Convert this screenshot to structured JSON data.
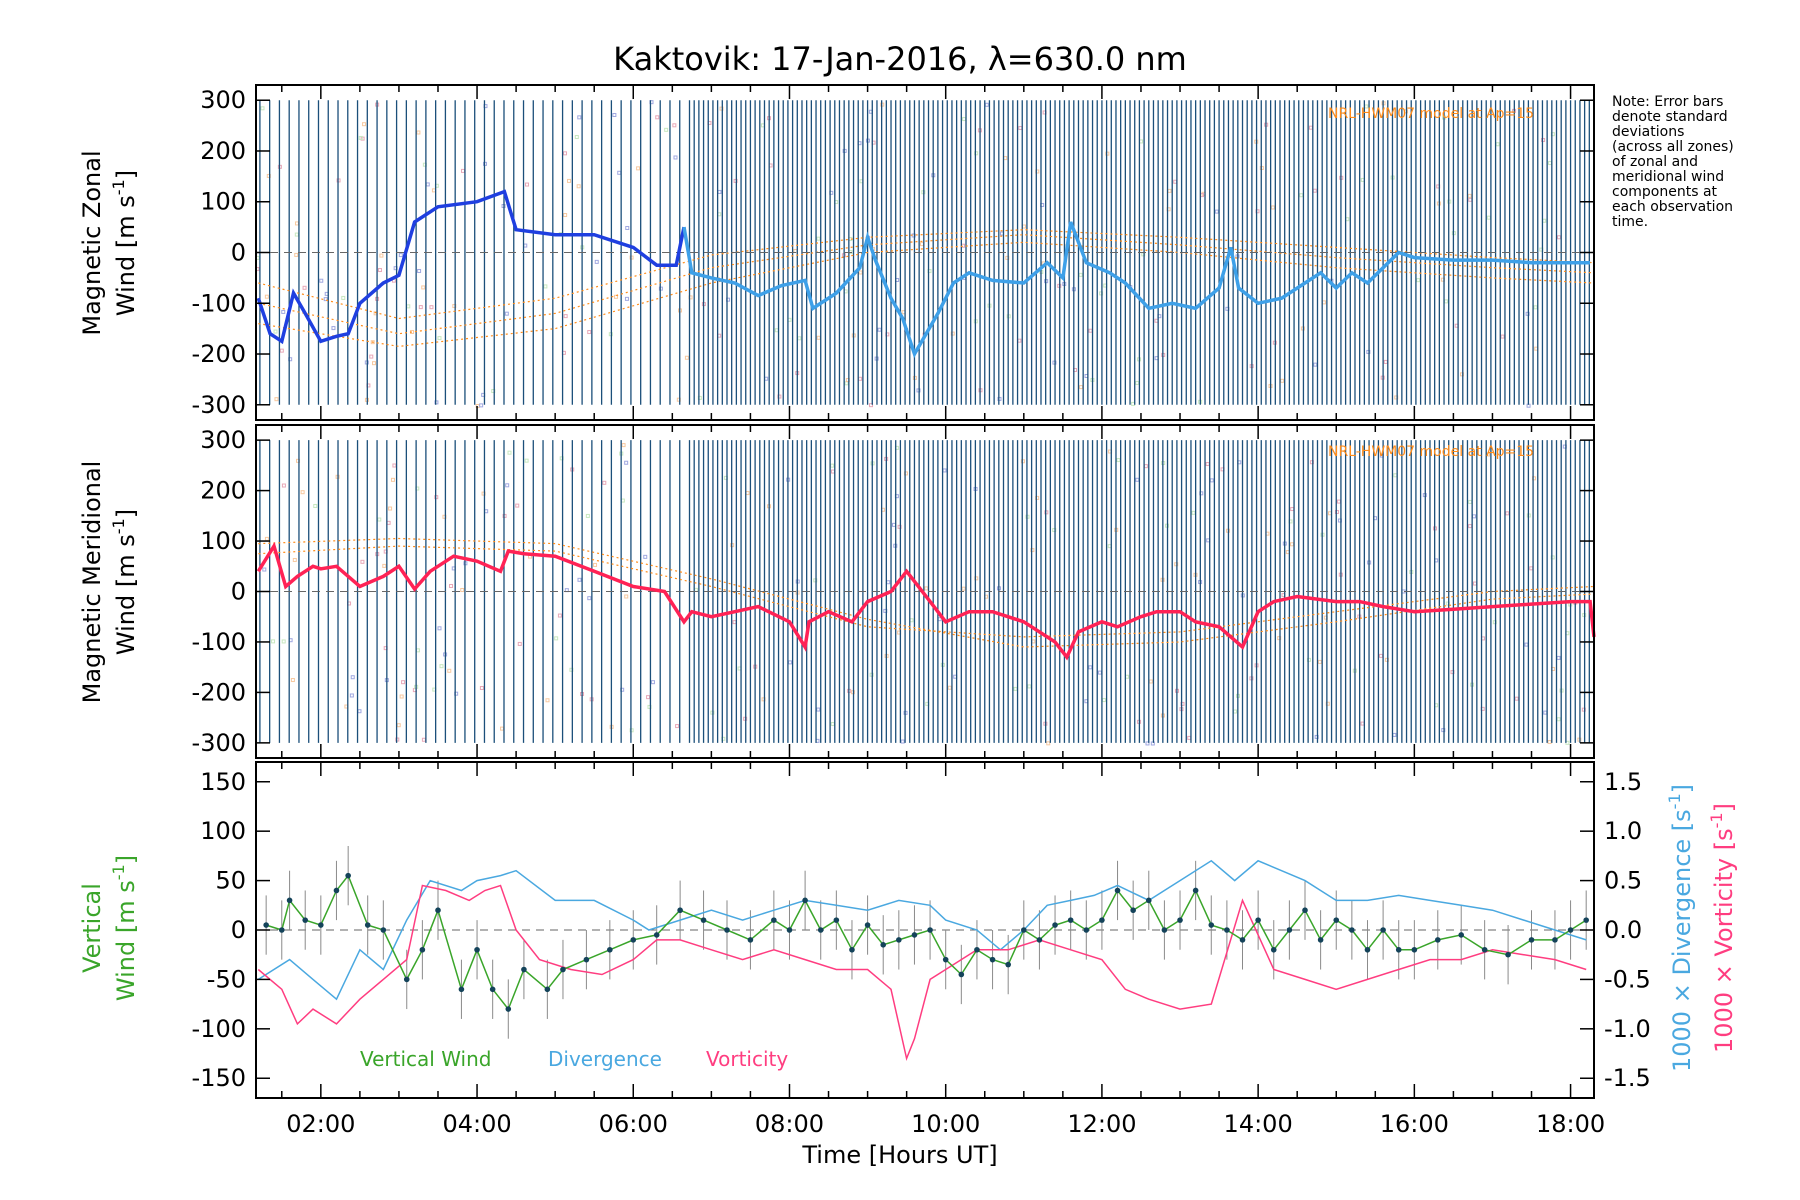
{
  "title": "Kaktovik: 17-Jan-2016, λ=630.0 nm",
  "note": [
    "Note: Error bars",
    "denote standard",
    "deviations",
    "(across all zones)",
    "of zonal and",
    "meridional wind",
    "components at",
    "each observation",
    "time."
  ],
  "model_label": "NRL-HWM07 model at Ap=15",
  "colors": {
    "zonal": "#1f3fe0",
    "zonal_light": "#3ea0e8",
    "meridional": "#ff2255",
    "errorbar": "#1b4f7a",
    "vertical": "#3aa52a",
    "divergence": "#4aa8e0",
    "vorticity": "#ff3d80",
    "model": "#ff8c1a",
    "bg_scatter": "#a0a8e0"
  },
  "chart_data": [
    {
      "type": "line",
      "panel": "zonal",
      "ylabel_line1": "Magnetic Zonal",
      "ylabel_line2": "Wind [m s",
      "ylabel_sup": "-1",
      "ylabel_end": "]",
      "ylim": [
        -330,
        330
      ],
      "yticks": [
        300,
        200,
        100,
        0,
        -100,
        -200,
        -300
      ],
      "xlim": [
        1.17,
        18.3
      ],
      "errorbar_halfwidth": 300,
      "series": [
        {
          "x": [
            1.2,
            1.35,
            1.5,
            1.65,
            1.8,
            2.0,
            2.2,
            2.35,
            2.5,
            2.8,
            3.0,
            3.2,
            3.5,
            4.0,
            4.35,
            4.5,
            5.0,
            5.5,
            6.0,
            6.3,
            6.55,
            6.65,
            6.75,
            7.0,
            7.3,
            7.6,
            7.9,
            8.2,
            8.3,
            8.6,
            8.9,
            9.0,
            9.1,
            9.3,
            9.45,
            9.6,
            9.9,
            10.1,
            10.3,
            10.6,
            11.0,
            11.3,
            11.5,
            11.6,
            11.8,
            12.1,
            12.3,
            12.6,
            12.9,
            13.2,
            13.5,
            13.65,
            13.75,
            14.0,
            14.3,
            14.6,
            14.8,
            15.0,
            15.2,
            15.4,
            15.6,
            15.8,
            16.0,
            16.5,
            17.0,
            17.5,
            18.0,
            18.25
          ],
          "y": [
            -90,
            -160,
            -175,
            -80,
            -120,
            -175,
            -165,
            -160,
            -100,
            -60,
            -45,
            60,
            90,
            100,
            120,
            45,
            35,
            35,
            10,
            -25,
            -25,
            50,
            -40,
            -50,
            -60,
            -85,
            -65,
            -55,
            -110,
            -80,
            -30,
            30,
            -15,
            -90,
            -130,
            -200,
            -120,
            -60,
            -40,
            -55,
            -60,
            -20,
            -50,
            60,
            -20,
            -40,
            -60,
            -110,
            -100,
            -110,
            -70,
            10,
            -70,
            -100,
            -90,
            -60,
            -40,
            -70,
            -40,
            -60,
            -30,
            0,
            -10,
            -15,
            -15,
            -20,
            -20,
            -20
          ]
        }
      ],
      "model": [
        {
          "x": [
            1.2,
            3,
            5,
            7,
            9,
            11,
            13,
            15,
            17,
            18.3
          ],
          "y": [
            -100,
            -160,
            -120,
            -30,
            15,
            35,
            15,
            -10,
            -30,
            -40
          ]
        },
        {
          "x": [
            1.2,
            3,
            5,
            7,
            9,
            11,
            13,
            15,
            17,
            18.3
          ],
          "y": [
            -140,
            -185,
            -150,
            -60,
            0,
            20,
            0,
            -30,
            -50,
            -60
          ]
        },
        {
          "x": [
            1.2,
            3,
            5,
            7,
            9,
            11,
            13,
            15,
            17,
            18.3
          ],
          "y": [
            -60,
            -130,
            -90,
            -5,
            30,
            45,
            30,
            10,
            -10,
            -20
          ]
        }
      ]
    },
    {
      "type": "line",
      "panel": "meridional",
      "ylabel_line1": "Magnetic Meridional",
      "ylabel_line2": "Wind [m s",
      "ylabel_sup": "-1",
      "ylabel_end": "]",
      "ylim": [
        -330,
        330
      ],
      "yticks": [
        300,
        200,
        100,
        0,
        -100,
        -200,
        -300
      ],
      "xlim": [
        1.17,
        18.3
      ],
      "errorbar_halfwidth": 300,
      "series": [
        {
          "x": [
            1.2,
            1.4,
            1.55,
            1.7,
            1.9,
            2.0,
            2.2,
            2.5,
            2.8,
            3.0,
            3.2,
            3.4,
            3.7,
            4.0,
            4.3,
            4.4,
            4.6,
            5.0,
            5.5,
            6.0,
            6.4,
            6.65,
            6.75,
            7.0,
            7.3,
            7.6,
            8.0,
            8.2,
            8.25,
            8.5,
            8.8,
            9.0,
            9.3,
            9.5,
            9.6,
            9.8,
            10.0,
            10.3,
            10.6,
            11.0,
            11.4,
            11.55,
            11.7,
            12.0,
            12.2,
            12.5,
            12.7,
            13.0,
            13.2,
            13.5,
            13.8,
            14.0,
            14.2,
            14.5,
            15.0,
            15.3,
            15.6,
            16.0,
            16.5,
            17.0,
            17.5,
            18.0,
            18.25,
            18.3
          ],
          "y": [
            40,
            90,
            10,
            30,
            50,
            45,
            50,
            10,
            30,
            50,
            5,
            40,
            70,
            60,
            40,
            80,
            75,
            70,
            40,
            10,
            0,
            -60,
            -40,
            -50,
            -40,
            -30,
            -60,
            -110,
            -60,
            -40,
            -60,
            -20,
            0,
            40,
            20,
            -20,
            -60,
            -40,
            -40,
            -60,
            -100,
            -130,
            -80,
            -60,
            -70,
            -50,
            -40,
            -40,
            -60,
            -70,
            -110,
            -40,
            -20,
            -10,
            -20,
            -20,
            -30,
            -40,
            -35,
            -30,
            -25,
            -20,
            -20,
            -90
          ]
        }
      ],
      "model": [
        {
          "x": [
            1.2,
            3,
            5,
            7,
            9,
            11,
            13,
            15,
            17,
            18.3
          ],
          "y": [
            75,
            90,
            80,
            10,
            -70,
            -90,
            -80,
            -40,
            0,
            10
          ]
        },
        {
          "x": [
            1.2,
            3,
            5,
            7,
            9,
            11,
            13,
            15,
            17,
            18.3
          ],
          "y": [
            95,
            105,
            95,
            25,
            -55,
            -110,
            -100,
            -60,
            -15,
            -5
          ]
        }
      ]
    },
    {
      "type": "line",
      "panel": "vertical",
      "ylabel_left_line1": "Vertical",
      "ylabel_left_line2": "Wind [m s",
      "ylabel_left_sup": "-1",
      "ylabel_left_end": "]",
      "ylabel_right1": "1000 × Divergence [s",
      "ylabel_right2": "1000 × Vorticity [s",
      "ylabel_right_sup": "-1",
      "ylabel_right_end": "]",
      "ylim": [
        -170,
        170
      ],
      "yticks": [
        150,
        100,
        50,
        0,
        -50,
        -100,
        -150
      ],
      "ylim_right": [
        -1.7,
        1.7
      ],
      "yticks_right": [
        "1.5",
        "1.0",
        "0.5",
        "0.0",
        "-0.5",
        "-1.0",
        "-1.5"
      ],
      "yticks_right_values": [
        1.5,
        1.0,
        0.5,
        0.0,
        -0.5,
        -1.0,
        -1.5
      ],
      "xlim": [
        1.17,
        18.3
      ],
      "xticks": [
        "02:00",
        "04:00",
        "06:00",
        "08:00",
        "10:00",
        "12:00",
        "14:00",
        "16:00",
        "18:00"
      ],
      "xticks_values": [
        2,
        4,
        6,
        8,
        10,
        12,
        14,
        16,
        18
      ],
      "xlabel": "Time [Hours UT]",
      "legend": [
        "Vertical Wind",
        "Divergence",
        "Vorticity"
      ],
      "series": [
        {
          "name": "Vertical Wind",
          "x": [
            1.3,
            1.5,
            1.6,
            1.8,
            2.0,
            2.2,
            2.35,
            2.6,
            2.8,
            3.1,
            3.3,
            3.5,
            3.8,
            4.0,
            4.2,
            4.4,
            4.6,
            4.9,
            5.1,
            5.4,
            5.7,
            6.0,
            6.3,
            6.6,
            6.9,
            7.2,
            7.5,
            7.8,
            8.0,
            8.2,
            8.4,
            8.6,
            8.8,
            9.0,
            9.2,
            9.4,
            9.6,
            9.8,
            10.0,
            10.2,
            10.4,
            10.6,
            10.8,
            11.0,
            11.2,
            11.4,
            11.6,
            11.8,
            12.0,
            12.2,
            12.4,
            12.6,
            12.8,
            13.0,
            13.2,
            13.4,
            13.6,
            13.8,
            14.0,
            14.2,
            14.4,
            14.6,
            14.8,
            15.0,
            15.2,
            15.4,
            15.6,
            15.8,
            16.0,
            16.3,
            16.6,
            16.9,
            17.2,
            17.5,
            17.8,
            18.0,
            18.2
          ],
          "y": [
            5,
            0,
            30,
            10,
            5,
            40,
            55,
            5,
            0,
            -50,
            -20,
            20,
            -60,
            -20,
            -60,
            -80,
            -40,
            -60,
            -40,
            -30,
            -20,
            -10,
            -5,
            20,
            10,
            0,
            -10,
            10,
            0,
            30,
            0,
            10,
            -20,
            5,
            -15,
            -10,
            -5,
            0,
            -30,
            -45,
            -20,
            -30,
            -35,
            0,
            -10,
            5,
            10,
            0,
            10,
            40,
            20,
            30,
            0,
            10,
            40,
            5,
            0,
            -10,
            10,
            -20,
            0,
            20,
            -10,
            10,
            0,
            -20,
            0,
            -20,
            -20,
            -10,
            -5,
            -20,
            -25,
            -10,
            -10,
            0,
            10
          ]
        },
        {
          "name": "Divergence",
          "x": [
            1.2,
            1.6,
            1.9,
            2.2,
            2.5,
            2.8,
            3.1,
            3.4,
            3.8,
            4.0,
            4.3,
            4.5,
            5.0,
            5.5,
            6.0,
            6.2,
            6.6,
            7.0,
            7.4,
            7.8,
            8.2,
            8.6,
            9.0,
            9.4,
            9.8,
            10.0,
            10.4,
            10.7,
            11.0,
            11.3,
            11.6,
            11.9,
            12.2,
            12.6,
            13.0,
            13.4,
            13.7,
            14.0,
            14.3,
            14.6,
            15.0,
            15.4,
            15.8,
            16.2,
            16.6,
            17.0,
            17.4,
            17.8,
            18.2
          ],
          "y": [
            -0.5,
            -0.3,
            -0.5,
            -0.7,
            -0.2,
            -0.4,
            0.1,
            0.5,
            0.4,
            0.5,
            0.55,
            0.6,
            0.3,
            0.3,
            0.1,
            0.0,
            0.1,
            0.2,
            0.1,
            0.2,
            0.3,
            0.25,
            0.2,
            0.3,
            0.25,
            0.1,
            0.0,
            -0.2,
            0.0,
            0.25,
            0.3,
            0.35,
            0.45,
            0.3,
            0.5,
            0.7,
            0.5,
            0.7,
            0.6,
            0.5,
            0.3,
            0.3,
            0.35,
            0.3,
            0.25,
            0.2,
            0.1,
            0.0,
            -0.1
          ]
        },
        {
          "name": "Vorticity",
          "x": [
            1.2,
            1.5,
            1.7,
            1.9,
            2.2,
            2.5,
            2.8,
            3.1,
            3.3,
            3.6,
            3.9,
            4.1,
            4.3,
            4.5,
            4.8,
            5.2,
            5.6,
            6.0,
            6.3,
            6.6,
            7.0,
            7.4,
            7.8,
            8.2,
            8.6,
            9.0,
            9.3,
            9.5,
            9.6,
            9.8,
            10.0,
            10.4,
            10.8,
            11.2,
            11.6,
            12.0,
            12.3,
            12.6,
            13.0,
            13.4,
            13.8,
            14.2,
            14.6,
            15.0,
            15.4,
            15.8,
            16.2,
            16.6,
            17.0,
            17.4,
            17.8,
            18.2
          ],
          "y": [
            -0.4,
            -0.6,
            -0.95,
            -0.8,
            -0.95,
            -0.7,
            -0.5,
            -0.3,
            0.45,
            0.4,
            0.3,
            0.4,
            0.45,
            0.0,
            -0.3,
            -0.4,
            -0.45,
            -0.3,
            -0.1,
            -0.1,
            -0.2,
            -0.3,
            -0.2,
            -0.3,
            -0.4,
            -0.4,
            -0.6,
            -1.3,
            -1.1,
            -0.5,
            -0.4,
            -0.2,
            -0.2,
            -0.1,
            -0.2,
            -0.3,
            -0.6,
            -0.7,
            -0.8,
            -0.75,
            0.3,
            -0.4,
            -0.5,
            -0.6,
            -0.5,
            -0.4,
            -0.3,
            -0.3,
            -0.2,
            -0.25,
            -0.3,
            -0.4
          ]
        }
      ]
    }
  ]
}
